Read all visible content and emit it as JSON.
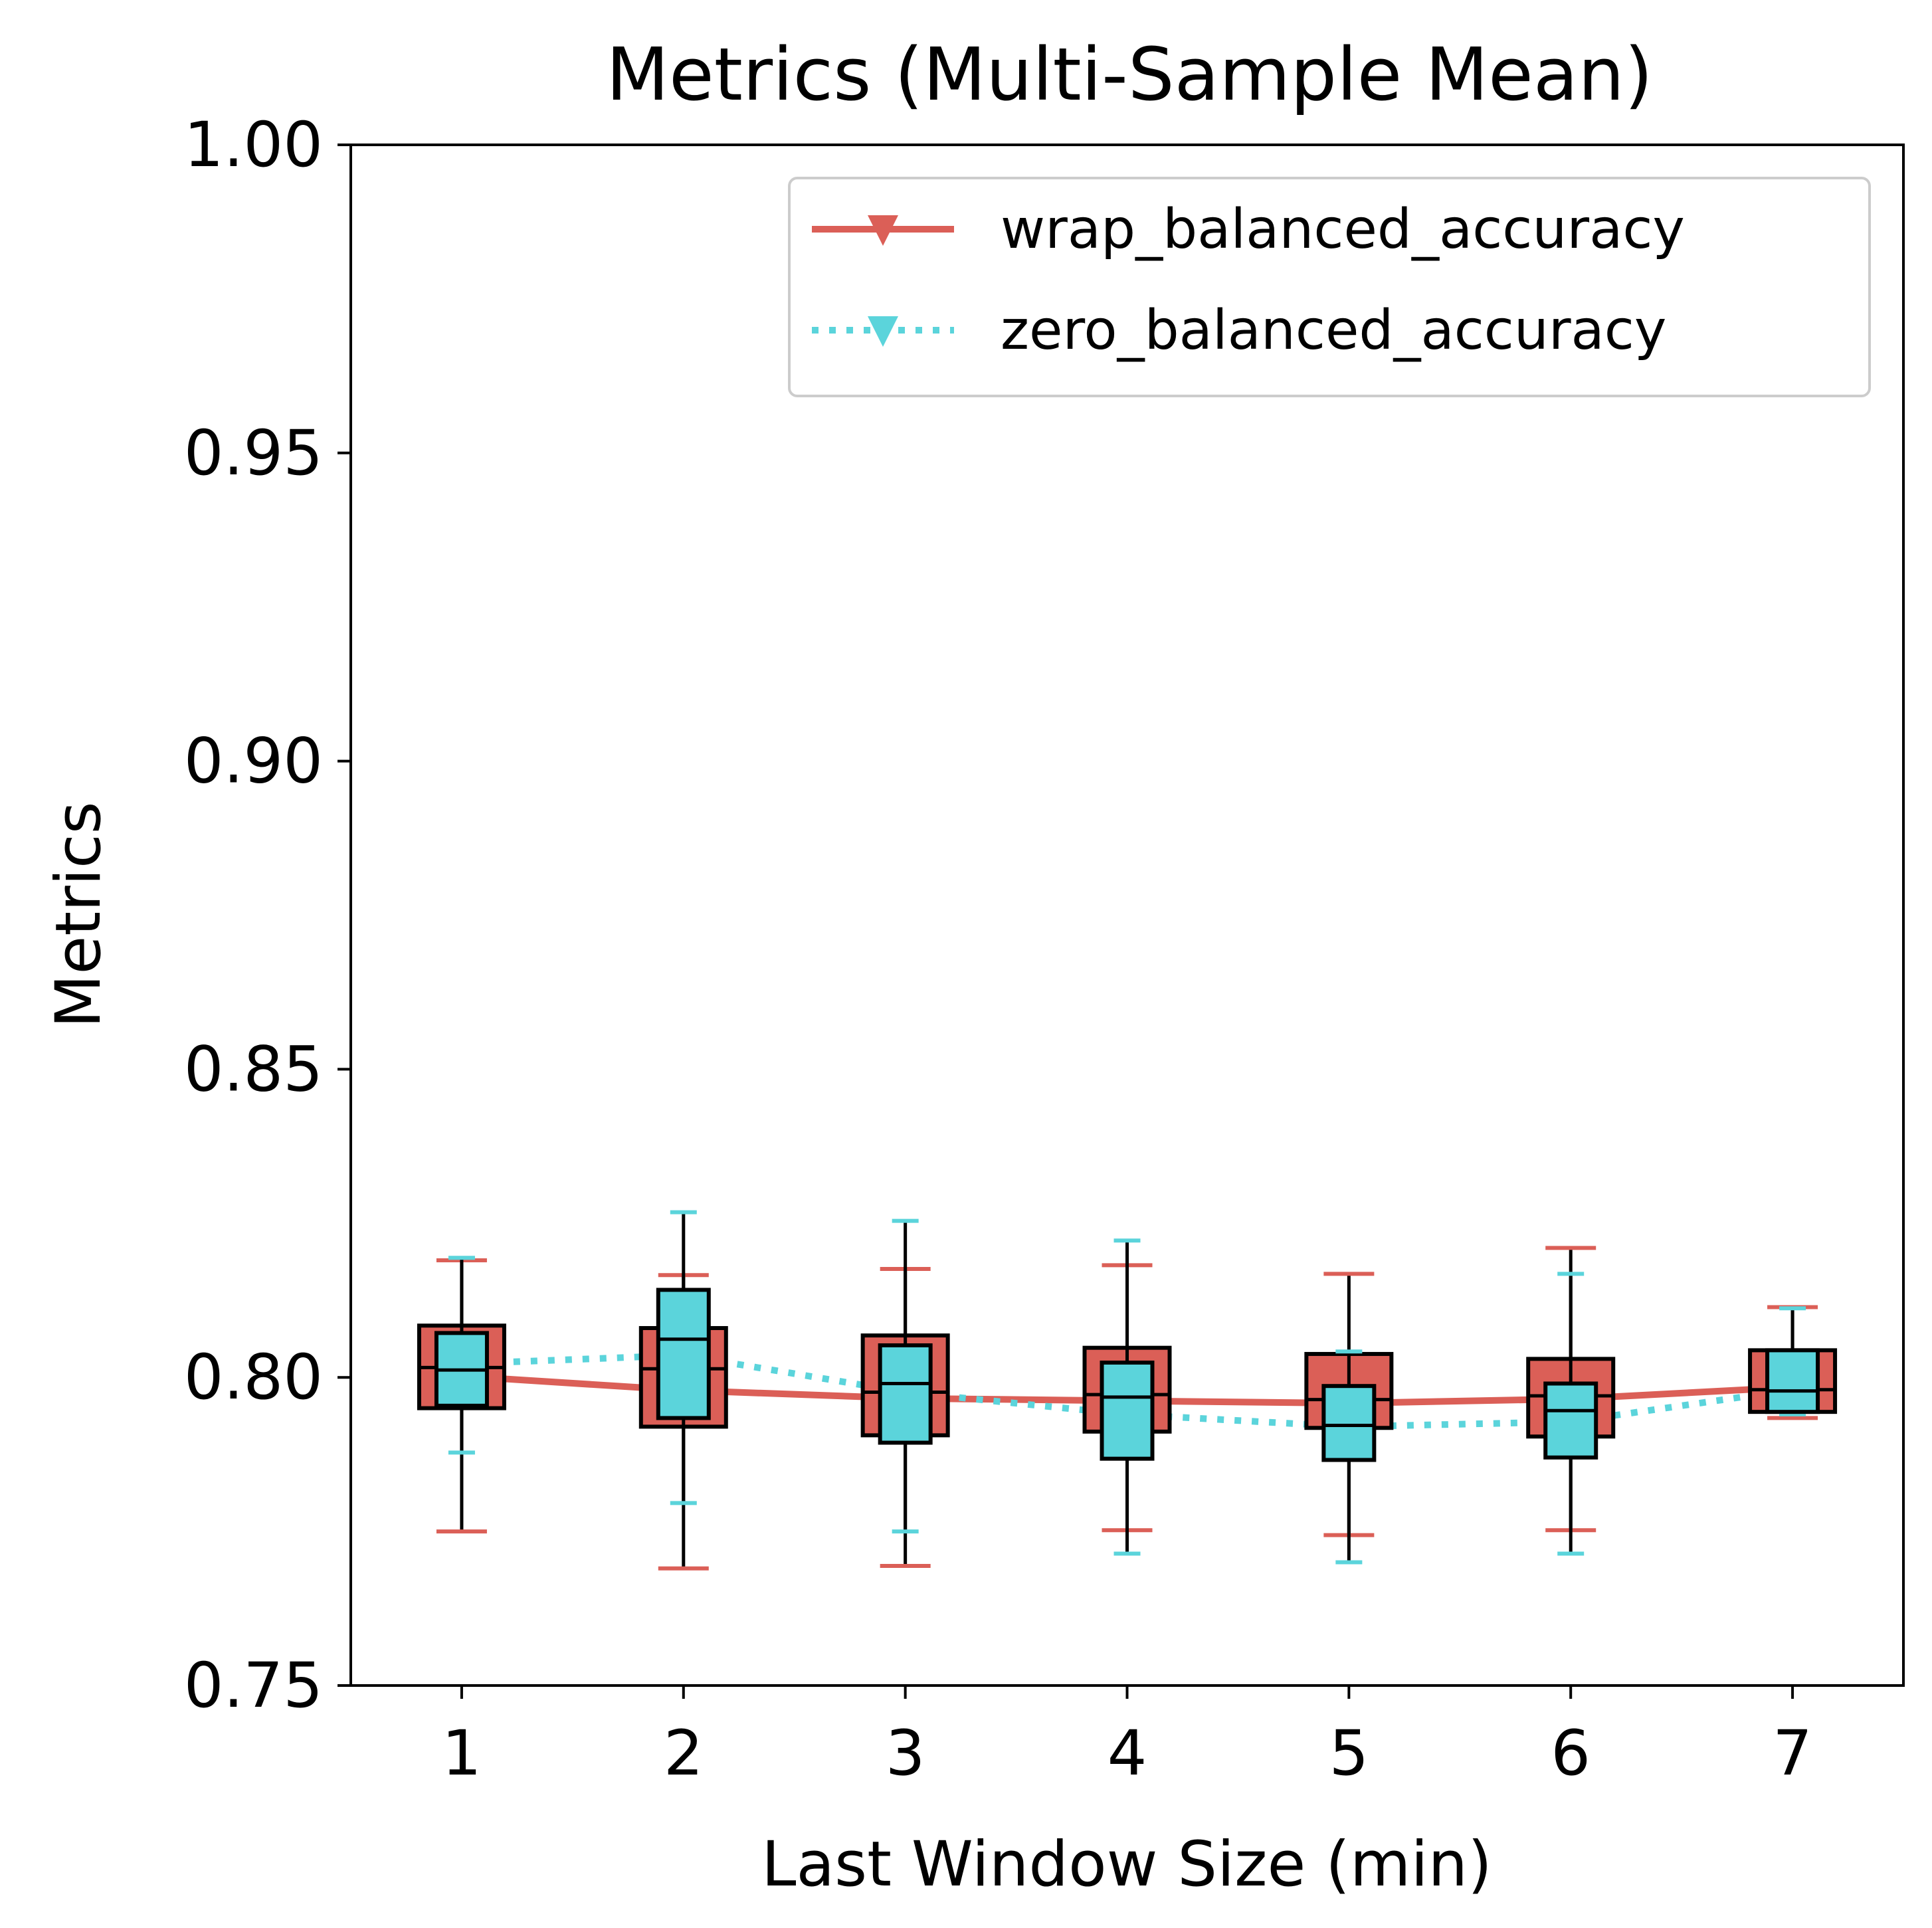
{
  "chart_data": {
    "type": "box",
    "title": "Metrics (Multi-Sample Mean)",
    "xlabel": "Last Window Size (min)",
    "ylabel": "Metrics",
    "categories": [
      "1",
      "2",
      "3",
      "4",
      "5",
      "6",
      "7"
    ],
    "ylim": [
      0.75,
      1.0
    ],
    "yticks": [
      "0.75",
      "0.80",
      "0.85",
      "0.90",
      "0.95",
      "1.00"
    ],
    "grid": false,
    "legend": {
      "position": "top-right"
    },
    "series": [
      {
        "name": "wrap_balanced_accuracy",
        "color": "#db5f57",
        "line_style": "solid",
        "marker": "triangle-down",
        "mean": [
          0.8002,
          0.7979,
          0.7966,
          0.7962,
          0.7958,
          0.7965,
          0.7984
        ],
        "boxes": [
          {
            "whislo": 0.775,
            "q1": 0.795,
            "med": 0.8016,
            "q3": 0.8084,
            "whishi": 0.819
          },
          {
            "whislo": 0.769,
            "q1": 0.792,
            "med": 0.8014,
            "q3": 0.808,
            "whishi": 0.8166
          },
          {
            "whislo": 0.7694,
            "q1": 0.7906,
            "med": 0.7976,
            "q3": 0.8068,
            "whishi": 0.8176
          },
          {
            "whislo": 0.7752,
            "q1": 0.7912,
            "med": 0.7972,
            "q3": 0.8048,
            "whishi": 0.8182
          },
          {
            "whislo": 0.7744,
            "q1": 0.7918,
            "med": 0.7964,
            "q3": 0.8038,
            "whishi": 0.8168
          },
          {
            "whislo": 0.7752,
            "q1": 0.7904,
            "med": 0.797,
            "q3": 0.803,
            "whishi": 0.821
          },
          {
            "whislo": 0.7934,
            "q1": 0.7944,
            "med": 0.798,
            "q3": 0.8044,
            "whishi": 0.8114
          }
        ]
      },
      {
        "name": "zero_balanced_accuracy",
        "color": "#5bd4db",
        "line_style": "dotted",
        "marker": "triangle-down",
        "mean": [
          0.8022,
          0.8036,
          0.7976,
          0.794,
          0.792,
          0.7928,
          0.798
        ],
        "boxes": [
          {
            "whislo": 0.7878,
            "q1": 0.7954,
            "med": 0.8012,
            "q3": 0.8072,
            "whishi": 0.8194
          },
          {
            "whislo": 0.7796,
            "q1": 0.7934,
            "med": 0.8062,
            "q3": 0.8142,
            "whishi": 0.8268
          },
          {
            "whislo": 0.775,
            "q1": 0.7894,
            "med": 0.799,
            "q3": 0.8052,
            "whishi": 0.8254
          },
          {
            "whislo": 0.7714,
            "q1": 0.7868,
            "med": 0.7968,
            "q3": 0.8024,
            "whishi": 0.8222
          },
          {
            "whislo": 0.77,
            "q1": 0.7866,
            "med": 0.7922,
            "q3": 0.7986,
            "whishi": 0.8042
          },
          {
            "whislo": 0.7714,
            "q1": 0.787,
            "med": 0.7946,
            "q3": 0.799,
            "whishi": 0.8168
          },
          {
            "whislo": 0.794,
            "q1": 0.7944,
            "med": 0.7978,
            "q3": 0.8044,
            "whishi": 0.8112
          }
        ]
      }
    ]
  }
}
